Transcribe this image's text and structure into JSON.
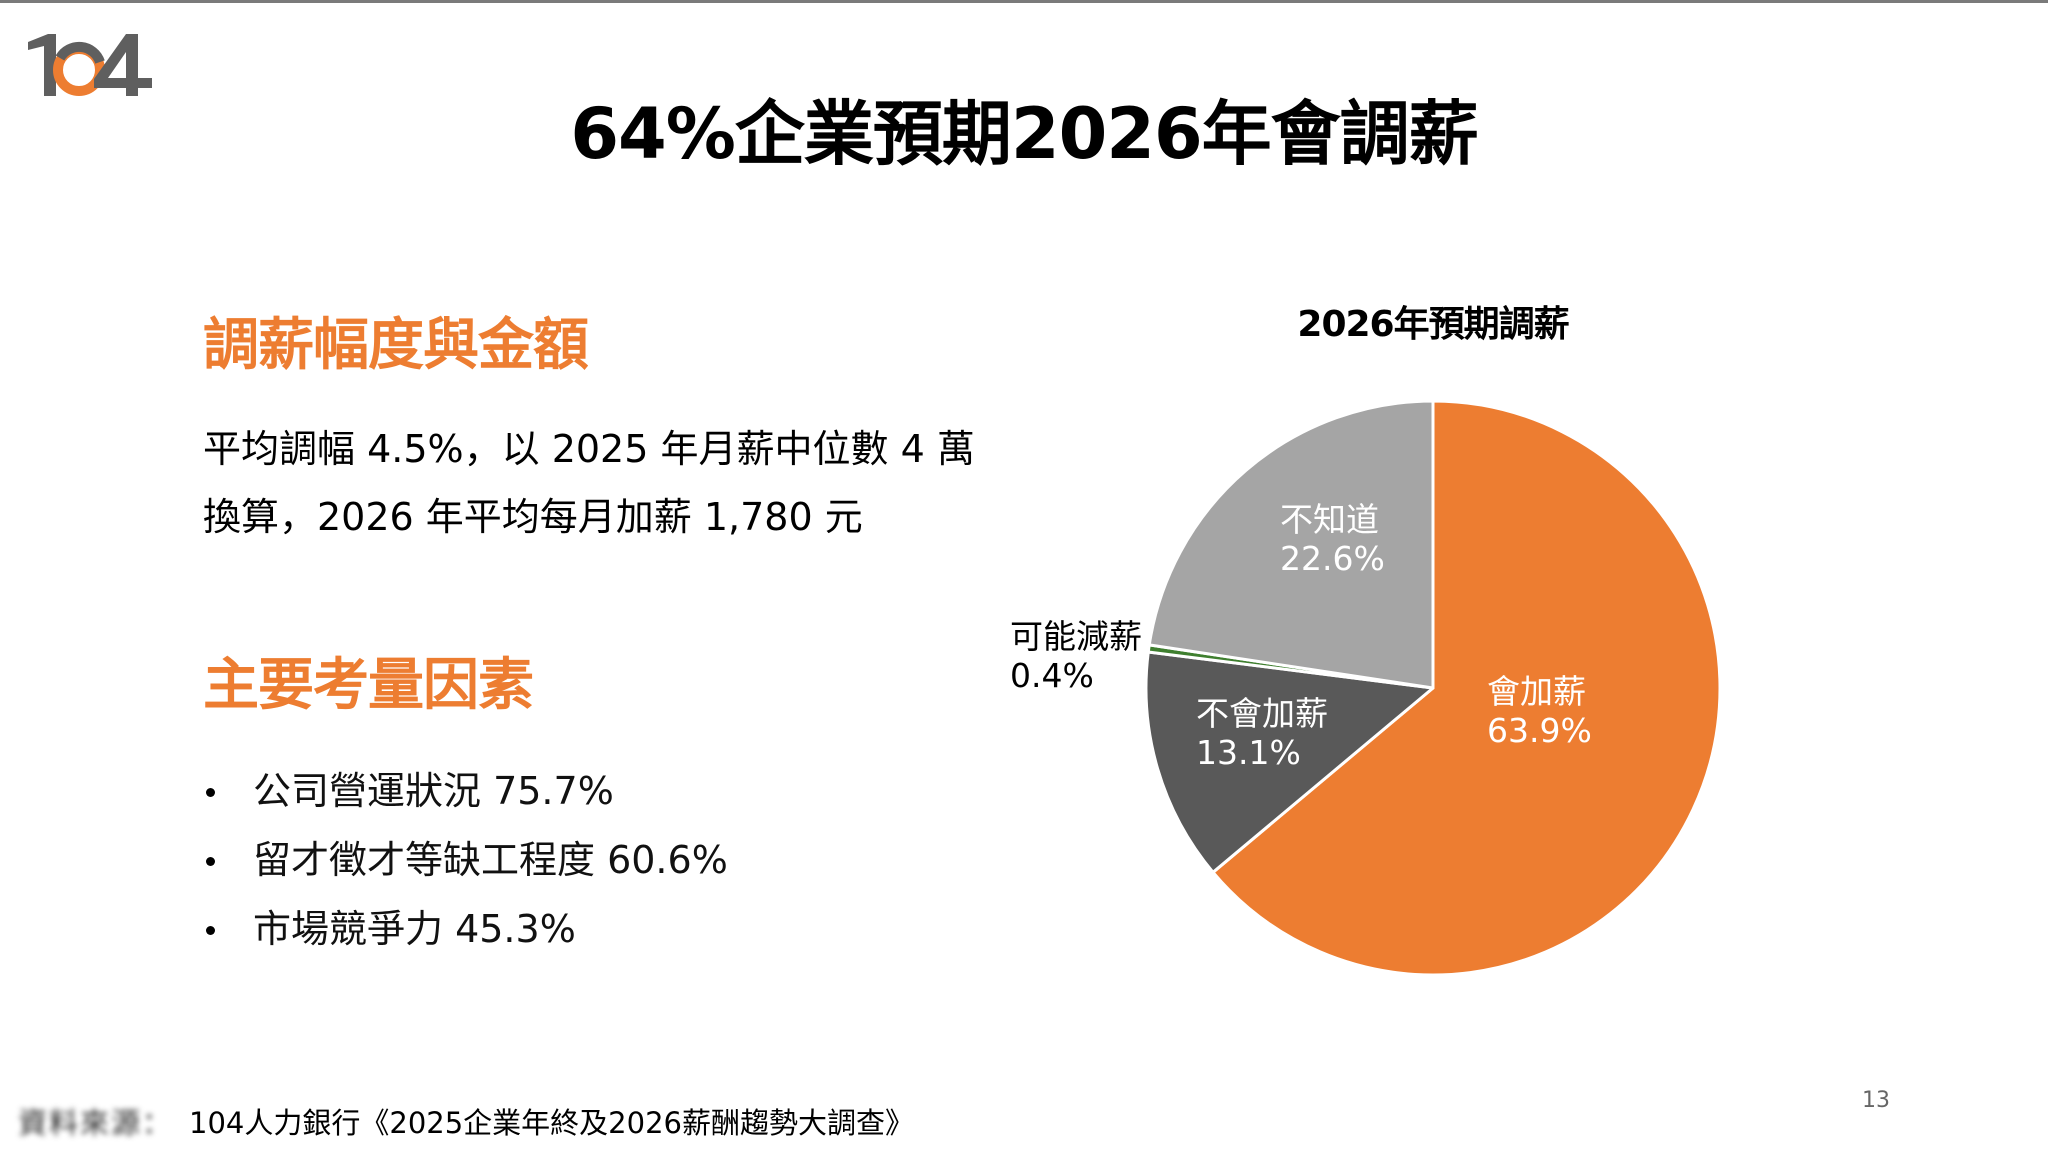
{
  "slide": {
    "logo_text": "104",
    "title": "64%企業預期2026年會調薪",
    "page_number": "13"
  },
  "left_panel": {
    "section1": {
      "heading": "調薪幅度與金額",
      "lines": [
        "平均調幅 4.5%，以 2025 年月薪中位數 4 萬",
        "換算，2026 年平均每月加薪 1,780 元"
      ]
    },
    "section2": {
      "heading": "主要考量因素",
      "bullets": [
        "公司營運狀況 75.7%",
        "留才徵才等缺工程度 60.6%",
        "市場競爭力 45.3%"
      ]
    }
  },
  "colors": {
    "accent_orange": "#ED7D31",
    "dark_gray": "#595959",
    "light_gray": "#A5A5A5",
    "green": "#3F7F2F"
  },
  "footer": {
    "source_prefix_blurred": "資料來源：",
    "source_text": "104人力銀行《2025企業年終及2026薪酬趨勢大調查》"
  },
  "chart_data": {
    "type": "pie",
    "title": "2026年預期調薪",
    "categories": [
      "會加薪",
      "不會加薪",
      "可能減薪",
      "不知道"
    ],
    "values": [
      63.9,
      13.1,
      0.4,
      22.6
    ],
    "unit": "%",
    "labels": [
      {
        "name": "會加薪",
        "value": "63.9%"
      },
      {
        "name": "不會加薪",
        "value": "13.1%"
      },
      {
        "name": "可能減薪",
        "value": "0.4%"
      },
      {
        "name": "不知道",
        "value": "22.6%"
      }
    ],
    "colors": [
      "#ED7D31",
      "#595959",
      "#3F7F2F",
      "#A5A5A5"
    ],
    "start_angle": "12 o'clock, clockwise",
    "legend": "none (data labels on slices)"
  }
}
